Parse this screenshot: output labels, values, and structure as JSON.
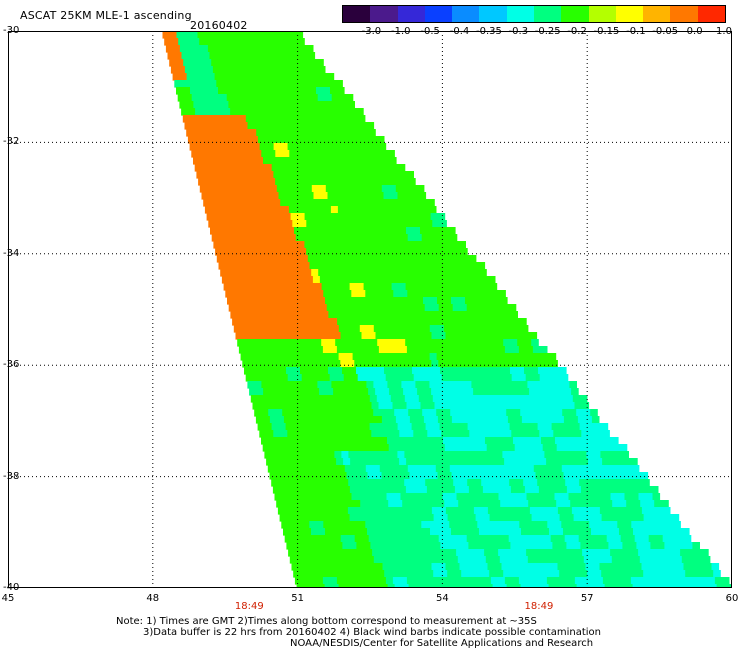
{
  "title": {
    "product": "ASCAT 25KM MLE-1 ascending",
    "date": "20160402"
  },
  "colorbar": {
    "ticks": [
      "-3.0",
      "-1.0",
      "-0.5",
      "-0.4",
      "-0.35",
      "-0.3",
      "-0.25",
      "-0.2",
      "-0.15",
      "-0.1",
      "-0.05",
      "0.0",
      "1.0"
    ],
    "colors": [
      "#2a003c",
      "#4b1a8c",
      "#3528d8",
      "#0a40ff",
      "#0a8cff",
      "#00c8ff",
      "#00ffe6",
      "#00ff80",
      "#28ff00",
      "#b4ff00",
      "#ffff00",
      "#ffb400",
      "#ff7800",
      "#ff2800"
    ]
  },
  "map": {
    "y_ticks": [
      "-30",
      "-32",
      "-34",
      "-36",
      "-38",
      "-40"
    ],
    "x_ticks": [
      "45",
      "48",
      "51",
      "54",
      "57",
      "60"
    ],
    "lat_values": [
      -30,
      -32,
      -34,
      -36,
      -38,
      -40
    ],
    "lon_values": [
      45,
      48,
      51,
      54,
      57,
      60
    ],
    "time_labels": [
      {
        "text": "18:49",
        "lon": 50.0
      },
      {
        "text": "18:49",
        "lon": 56.0
      }
    ],
    "swath": {
      "lat_top": -30.0,
      "lat_bottom": -40.0,
      "top_west_lon": 48.2,
      "top_east_lon": 51.0,
      "bottom_west_lon": 51.0,
      "bottom_east_lon": 60.0,
      "colors": {
        "cyan": "#00ffe6",
        "green": "#28ff00",
        "lightgreen": "#00ff80",
        "yellowgreen": "#b4ff00",
        "yellow": "#ffff00",
        "orange": "#ff7800",
        "blue": "#0a8cff",
        "darkblue": "#0a40ff"
      }
    }
  },
  "notes": {
    "line1": "Note: 1) Times are GMT 2)Times along bottom correspond to measurement at ~35S",
    "line2": "3)Data buffer is 22 hrs from 20160402 4) Black wind barbs indicate possible contamination",
    "line3": "NOAA/NESDIS/Center for Satellite Applications and Research"
  }
}
